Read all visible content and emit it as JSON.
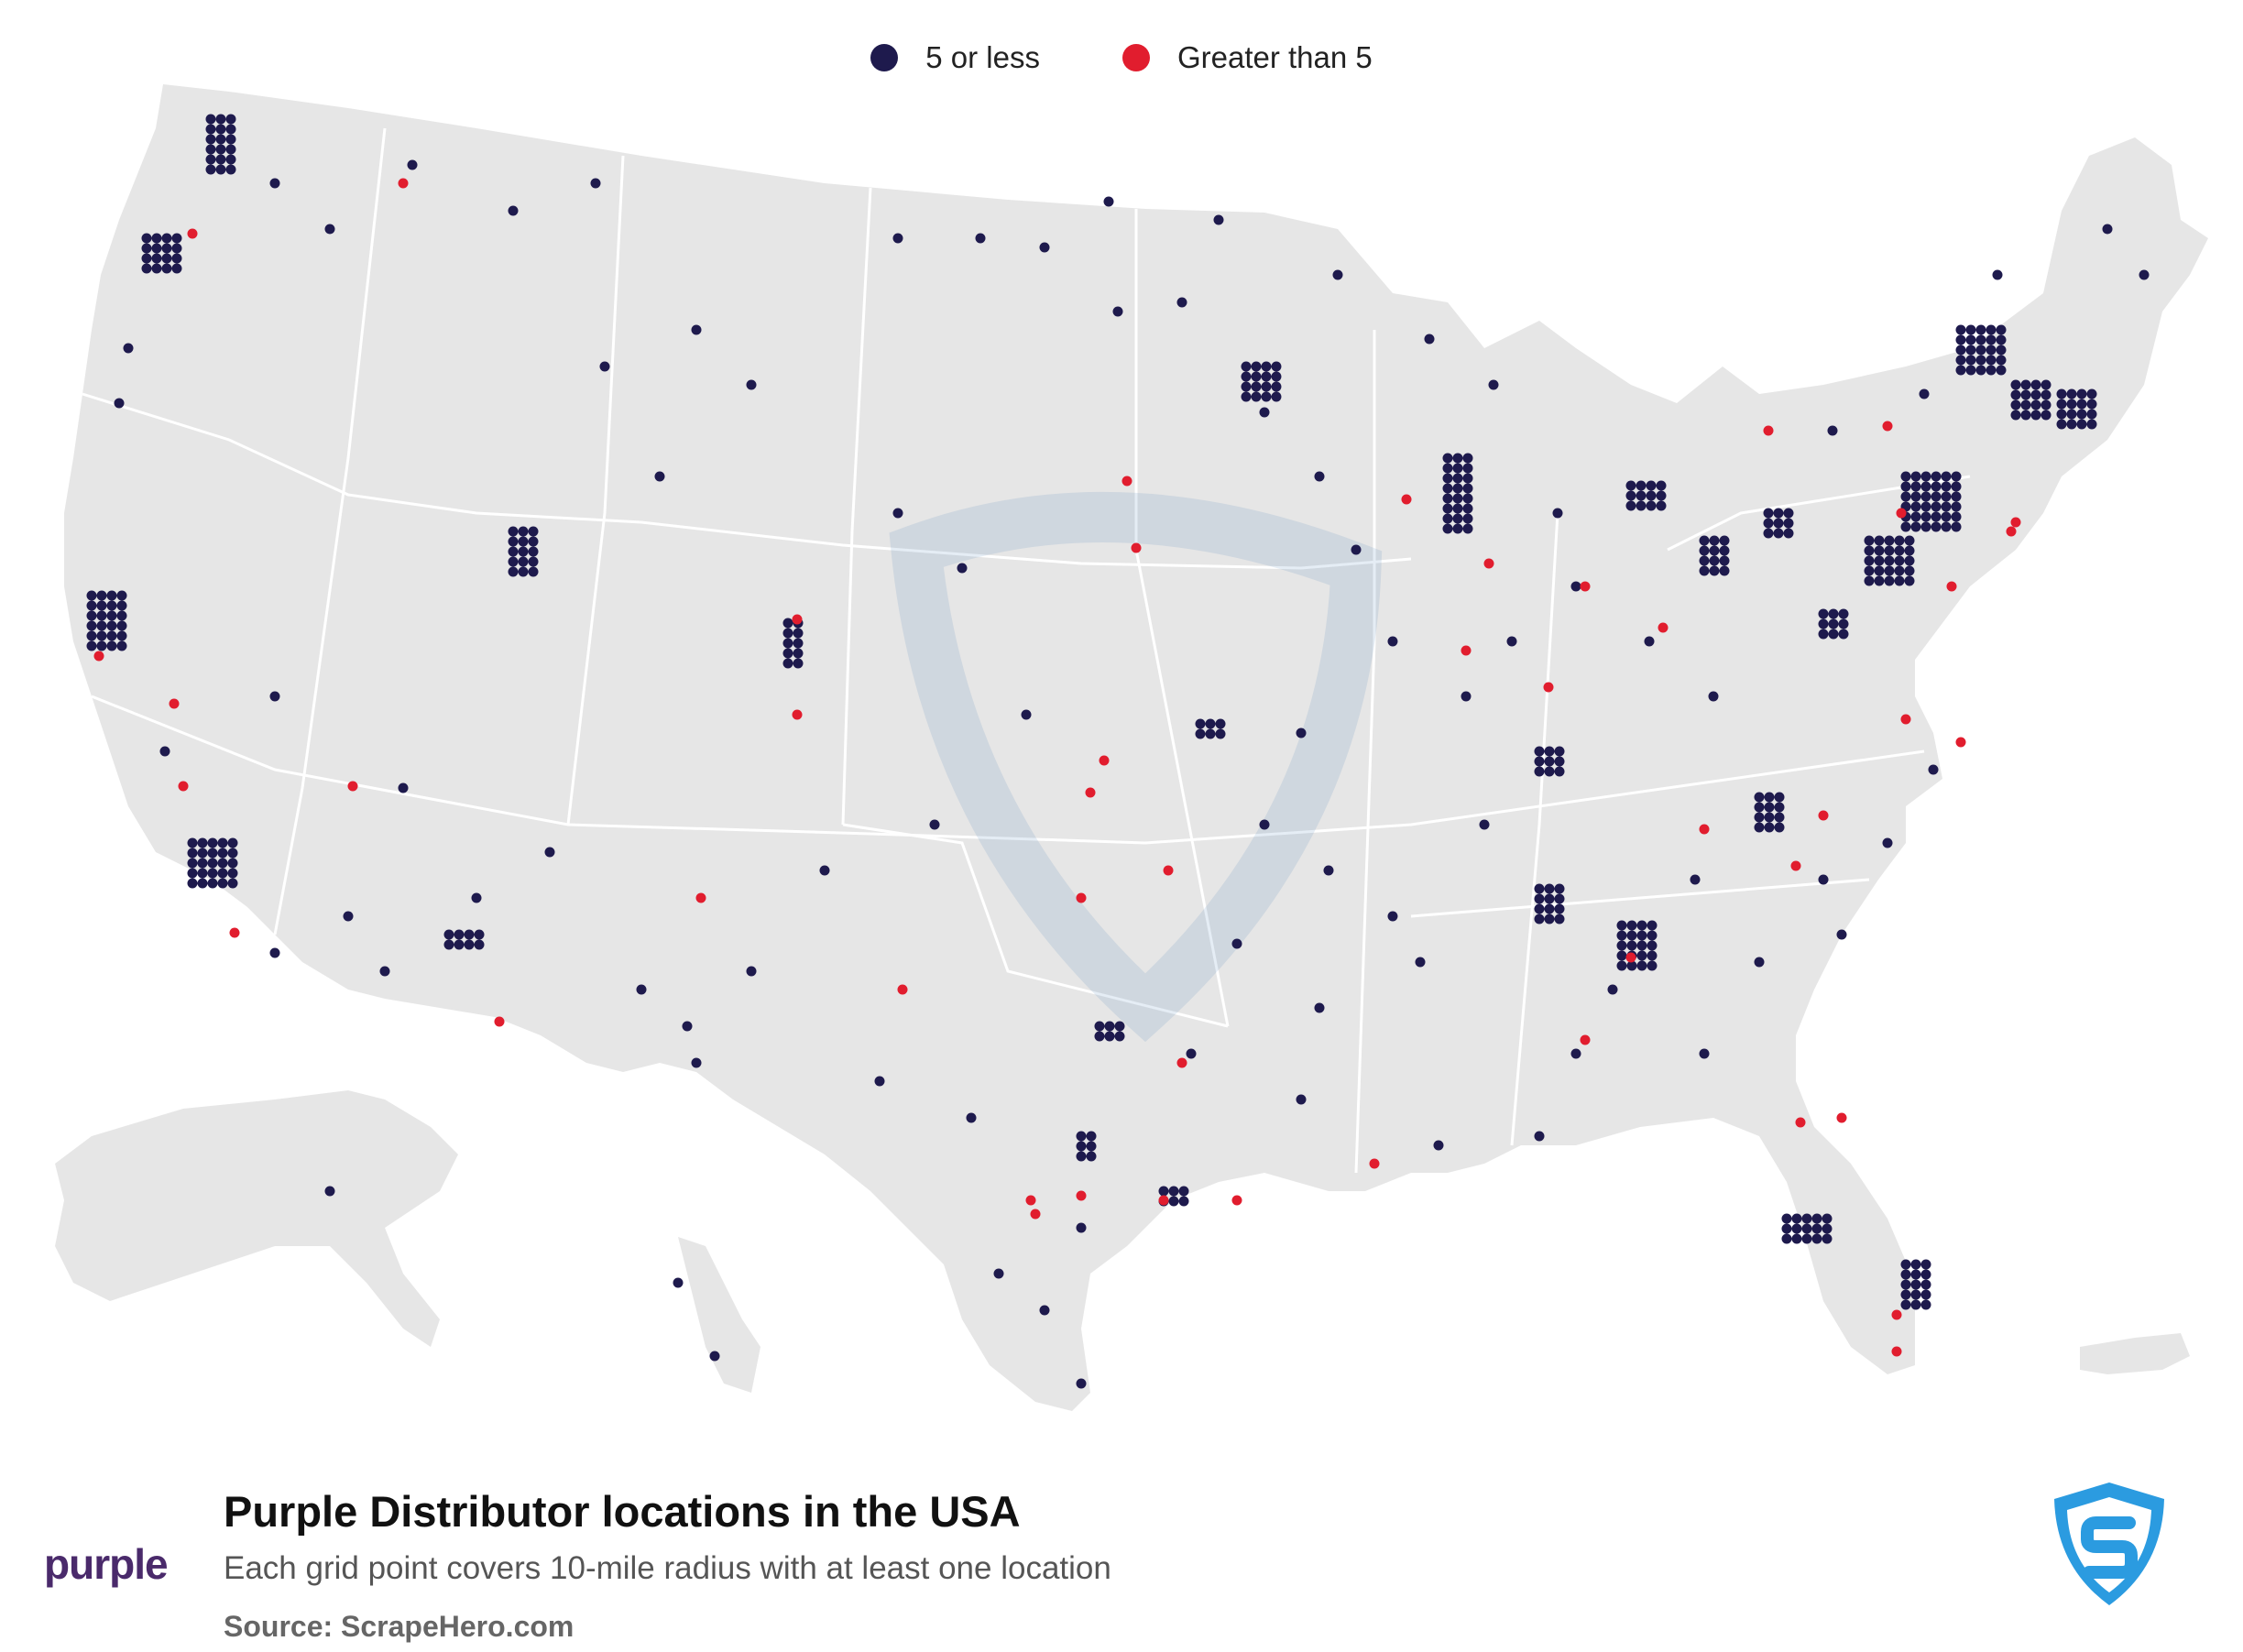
{
  "legend": {
    "items": [
      {
        "label": "5 or less",
        "color": "#1e1a4d"
      },
      {
        "label": "Greater than 5",
        "color": "#e11d2e"
      }
    ]
  },
  "map": {
    "land_color": "#e6e6e6",
    "border_color": "#ffffff",
    "dot_colors": {
      "low": "#1e1a4d",
      "high": "#e11d2e"
    },
    "watermark_icon": "scrapehero-shield-icon"
  },
  "footer": {
    "title": "Purple Distributor locations in the USA",
    "subtitle": "Each grid point covers 10-mile radius with at least one location",
    "source": "Source: ScrapeHero.com"
  },
  "brand": {
    "logo_text": "purple",
    "badge_icon": "scrapehero-shield-icon"
  }
}
